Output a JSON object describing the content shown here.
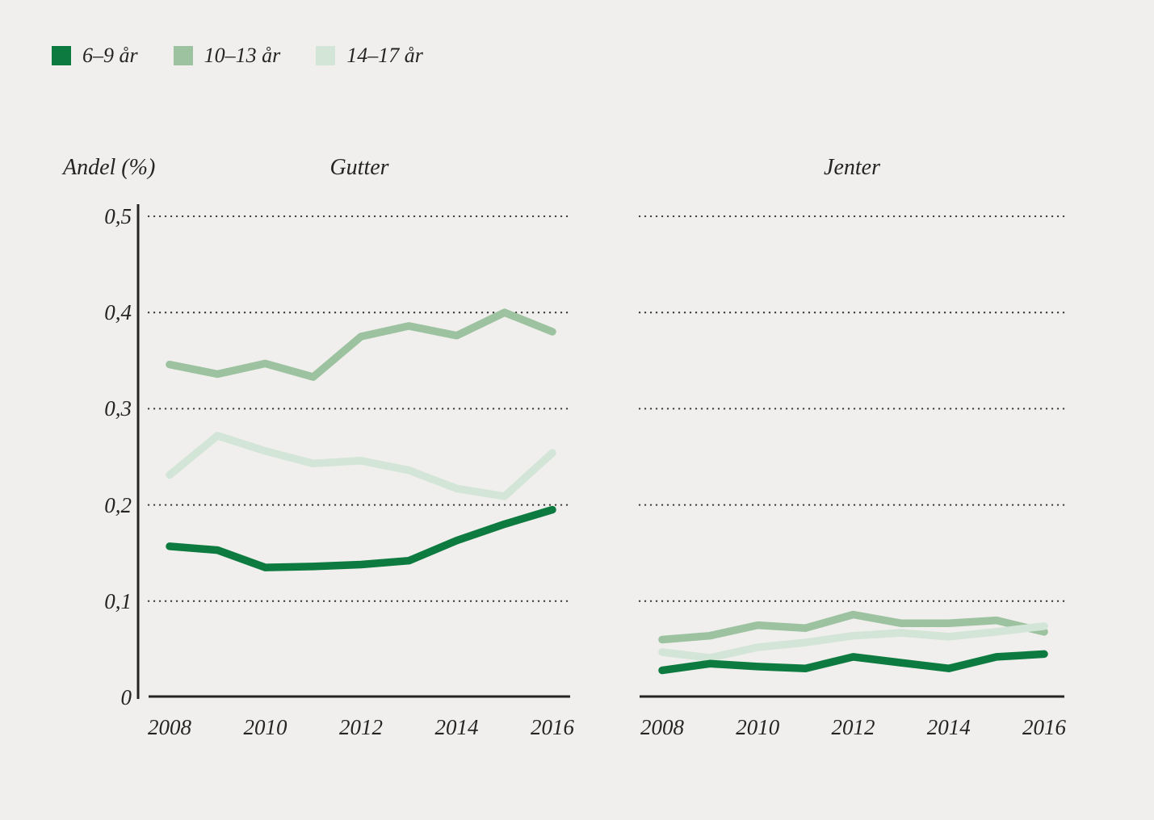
{
  "page": {
    "background_color": "#f1efed",
    "text_color": "#262423"
  },
  "legend": {
    "items": [
      {
        "label": "6–9 år",
        "color": "#0d7b40"
      },
      {
        "label": "10–13 år",
        "color": "#9cc2a0"
      },
      {
        "label": "14–17 år",
        "color": "#d3e5d6"
      }
    ]
  },
  "chart_data": {
    "type": "line",
    "ylabel": "Andel (%)",
    "ylim": [
      0,
      0.5
    ],
    "y_ticks": [
      {
        "label": "0,5",
        "value": 0.5
      },
      {
        "label": "0,4",
        "value": 0.4
      },
      {
        "label": "0,3",
        "value": 0.3
      },
      {
        "label": "0,2",
        "value": 0.2
      },
      {
        "label": "0,1",
        "value": 0.1
      },
      {
        "label": "0",
        "value": 0
      }
    ],
    "x": [
      2008,
      2009,
      2010,
      2011,
      2012,
      2013,
      2014,
      2015,
      2016
    ],
    "x_ticks": [
      {
        "label": "2008",
        "value": 2008
      },
      {
        "label": "2010",
        "value": 2010
      },
      {
        "label": "2012",
        "value": 2012
      },
      {
        "label": "2014",
        "value": 2014
      },
      {
        "label": "2016",
        "value": 2016
      }
    ],
    "grid": "horizontal-dotted",
    "legend_position": "top-left",
    "panels": [
      {
        "title": "Gutter",
        "series": [
          {
            "name": "6–9 år",
            "color": "#0d7b40",
            "values": [
              0.157,
              0.153,
              0.135,
              0.136,
              0.138,
              0.142,
              0.163,
              0.18,
              0.195
            ]
          },
          {
            "name": "10–13 år",
            "color": "#9cc2a0",
            "values": [
              0.346,
              0.336,
              0.347,
              0.333,
              0.375,
              0.386,
              0.376,
              0.4,
              0.38
            ]
          },
          {
            "name": "14–17 år",
            "color": "#d3e5d6",
            "values": [
              0.231,
              0.272,
              0.256,
              0.243,
              0.246,
              0.236,
              0.217,
              0.209,
              0.254
            ]
          }
        ]
      },
      {
        "title": "Jenter",
        "series": [
          {
            "name": "6–9 år",
            "color": "#0d7b40",
            "values": [
              0.028,
              0.035,
              0.032,
              0.03,
              0.042,
              0.036,
              0.03,
              0.042,
              0.045
            ]
          },
          {
            "name": "10–13 år",
            "color": "#9cc2a0",
            "values": [
              0.06,
              0.064,
              0.075,
              0.072,
              0.086,
              0.077,
              0.077,
              0.08,
              0.068
            ]
          },
          {
            "name": "14–17 år",
            "color": "#d3e5d6",
            "values": [
              0.047,
              0.041,
              0.052,
              0.057,
              0.064,
              0.067,
              0.063,
              0.068,
              0.074
            ]
          }
        ]
      }
    ]
  }
}
